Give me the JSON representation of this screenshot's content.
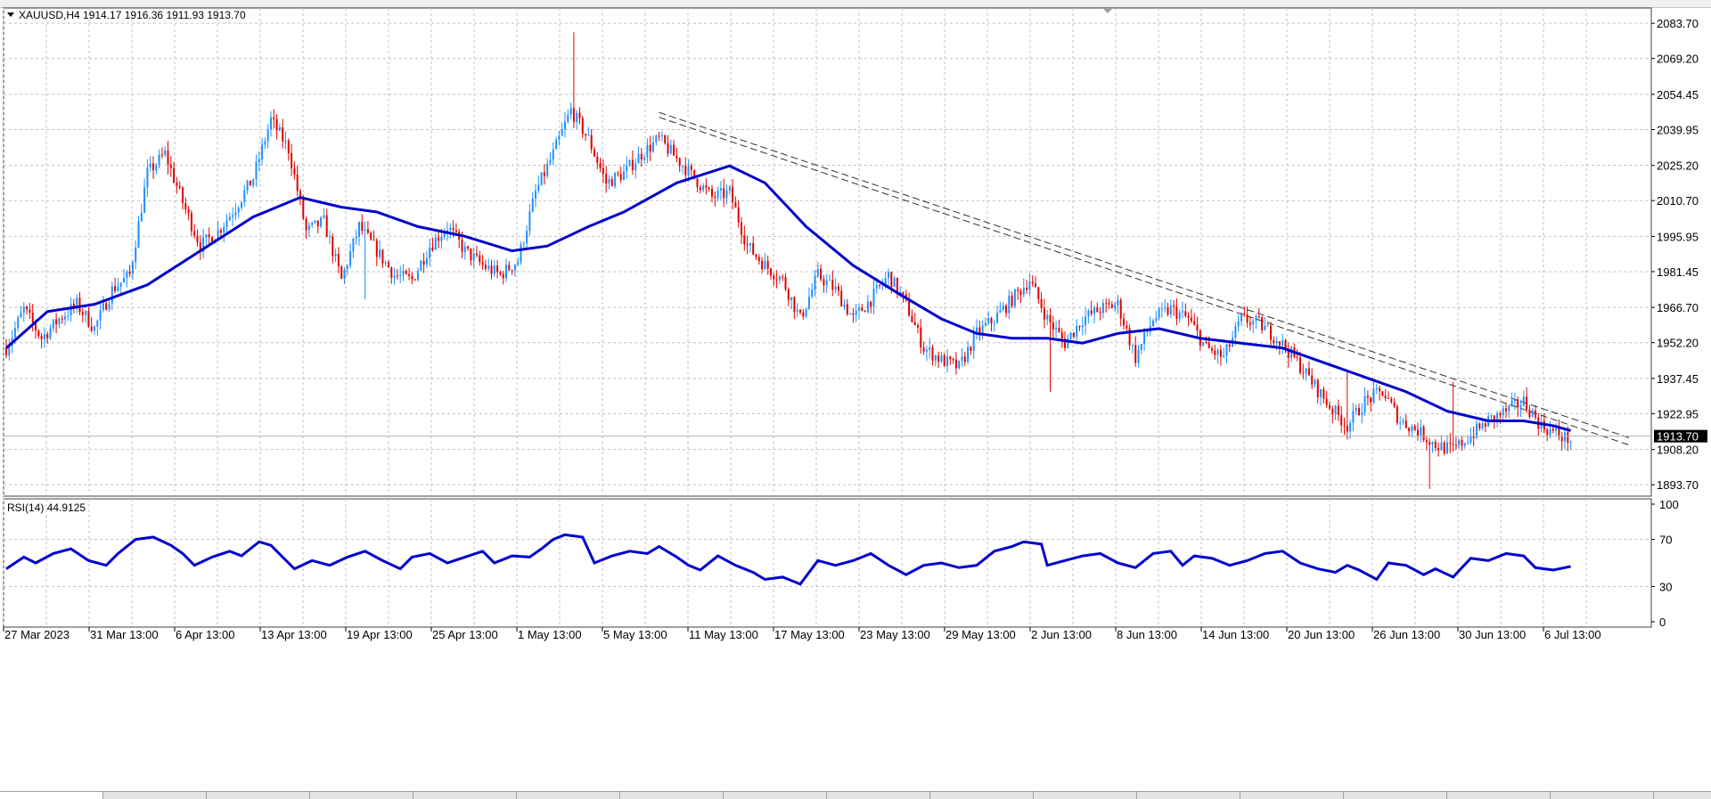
{
  "header": {
    "symbol_info": "XAUUSD,H4  1914.17 1916.36 1911.93 1913.70",
    "indicator_label": "RSI(14) 44.9125"
  },
  "price_axis": {
    "labels": [
      "2083.70",
      "2069.20",
      "2054.45",
      "2039.95",
      "2025.20",
      "2010.70",
      "1995.95",
      "1981.45",
      "1966.70",
      "1952.20",
      "1937.45",
      "1922.95",
      "1908.20",
      "1893.70"
    ],
    "current_price": "1913.70"
  },
  "rsi_axis": {
    "labels": [
      "100",
      "70",
      "30",
      "0"
    ]
  },
  "time_axis": {
    "labels": [
      "27 Mar 2023",
      "31 Mar 13:00",
      "6 Apr 13:00",
      "13 Apr 13:00",
      "19 Apr 13:00",
      "25 Apr 13:00",
      "1 May 13:00",
      "5 May 13:00",
      "11 May 13:00",
      "17 May 13:00",
      "23 May 13:00",
      "29 May 13:00",
      "2 Jun 13:00",
      "8 Jun 13:00",
      "14 Jun 13:00",
      "20 Jun 13:00",
      "26 Jun 13:00",
      "30 Jun 13:00",
      "6 Jul 13:00"
    ]
  },
  "colors": {
    "bull_candle": "#1e90ff",
    "bear_candle": "#e00000",
    "moving_average": "#0000cd",
    "rsi_line": "#0000cd",
    "grid": "#c0c0c0",
    "trendline": "#303030",
    "price_tag_bg": "#000000"
  },
  "chart_data": [
    {
      "type": "candlestick",
      "symbol": "XAUUSD",
      "timeframe": "H4",
      "ylim": [
        1889,
        2090
      ],
      "grid": true,
      "x": [
        "27 Mar 2023",
        "31 Mar 13:00",
        "6 Apr 13:00",
        "13 Apr 13:00",
        "19 Apr 13:00",
        "25 Apr 13:00",
        "1 May 13:00",
        "5 May 13:00",
        "11 May 13:00",
        "17 May 13:00",
        "23 May 13:00",
        "29 May 13:00",
        "2 Jun 13:00",
        "8 Jun 13:00",
        "14 Jun 13:00",
        "20 Jun 13:00",
        "26 Jun 13:00",
        "30 Jun 13:00",
        "6 Jul 13:00"
      ],
      "close_path": [
        [
          0,
          1950
        ],
        [
          6,
          1966
        ],
        [
          12,
          1954
        ],
        [
          18,
          1962
        ],
        [
          24,
          1968
        ],
        [
          30,
          1958
        ],
        [
          36,
          1974
        ],
        [
          42,
          1980
        ],
        [
          48,
          2022
        ],
        [
          54,
          2030
        ],
        [
          60,
          2010
        ],
        [
          66,
          1992
        ],
        [
          72,
          1998
        ],
        [
          78,
          2008
        ],
        [
          84,
          2020
        ],
        [
          90,
          2044
        ],
        [
          96,
          2032
        ],
        [
          102,
          1998
        ],
        [
          108,
          2002
        ],
        [
          114,
          1978
        ],
        [
          120,
          2000
        ],
        [
          126,
          1990
        ],
        [
          132,
          1980
        ],
        [
          138,
          1978
        ],
        [
          144,
          1992
        ],
        [
          150,
          2000
        ],
        [
          156,
          1990
        ],
        [
          162,
          1984
        ],
        [
          168,
          1980
        ],
        [
          174,
          1986
        ],
        [
          180,
          2014
        ],
        [
          186,
          2030
        ],
        [
          192,
          2048
        ],
        [
          198,
          2036
        ],
        [
          204,
          2018
        ],
        [
          210,
          2022
        ],
        [
          216,
          2030
        ],
        [
          222,
          2036
        ],
        [
          228,
          2028
        ],
        [
          234,
          2020
        ],
        [
          240,
          2012
        ],
        [
          246,
          2014
        ],
        [
          252,
          1992
        ],
        [
          258,
          1984
        ],
        [
          264,
          1978
        ],
        [
          270,
          1962
        ],
        [
          276,
          1980
        ],
        [
          282,
          1974
        ],
        [
          288,
          1962
        ],
        [
          294,
          1970
        ],
        [
          300,
          1980
        ],
        [
          306,
          1968
        ],
        [
          312,
          1950
        ],
        [
          318,
          1945
        ],
        [
          324,
          1942
        ],
        [
          330,
          1956
        ],
        [
          336,
          1962
        ],
        [
          342,
          1970
        ],
        [
          348,
          1978
        ],
        [
          354,
          1962
        ],
        [
          360,
          1952
        ],
        [
          366,
          1962
        ],
        [
          372,
          1966
        ],
        [
          378,
          1968
        ],
        [
          384,
          1946
        ],
        [
          390,
          1962
        ],
        [
          396,
          1966
        ],
        [
          402,
          1962
        ],
        [
          408,
          1950
        ],
        [
          414,
          1946
        ],
        [
          420,
          1962
        ],
        [
          426,
          1960
        ],
        [
          432,
          1954
        ],
        [
          438,
          1946
        ],
        [
          444,
          1936
        ],
        [
          450,
          1926
        ],
        [
          456,
          1918
        ],
        [
          462,
          1928
        ],
        [
          468,
          1932
        ],
        [
          474,
          1920
        ],
        [
          480,
          1916
        ],
        [
          486,
          1910
        ],
        [
          492,
          1908
        ],
        [
          498,
          1914
        ],
        [
          504,
          1920
        ],
        [
          510,
          1924
        ],
        [
          516,
          1928
        ],
        [
          522,
          1918
        ],
        [
          528,
          1914
        ],
        [
          532,
          1912
        ]
      ],
      "high_extremes": [
        {
          "bar": 193,
          "value": 2080
        },
        {
          "bar": 492,
          "value": 1936
        },
        {
          "bar": 456,
          "value": 1940
        }
      ],
      "low_extremes": [
        {
          "bar": 484,
          "value": 1892
        },
        {
          "bar": 122,
          "value": 1970
        },
        {
          "bar": 355,
          "value": 1932
        }
      ],
      "moving_average": {
        "name": "MA",
        "points": [
          [
            0,
            1950
          ],
          [
            14,
            1965
          ],
          [
            30,
            1968
          ],
          [
            48,
            1976
          ],
          [
            66,
            1990
          ],
          [
            84,
            2004
          ],
          [
            100,
            2012
          ],
          [
            114,
            2008
          ],
          [
            126,
            2006
          ],
          [
            140,
            2000
          ],
          [
            156,
            1996
          ],
          [
            172,
            1990
          ],
          [
            184,
            1992
          ],
          [
            198,
            2000
          ],
          [
            210,
            2006
          ],
          [
            228,
            2018
          ],
          [
            246,
            2025
          ],
          [
            258,
            2018
          ],
          [
            272,
            2000
          ],
          [
            288,
            1984
          ],
          [
            304,
            1972
          ],
          [
            318,
            1962
          ],
          [
            330,
            1956
          ],
          [
            342,
            1954
          ],
          [
            354,
            1954
          ],
          [
            366,
            1952
          ],
          [
            378,
            1956
          ],
          [
            392,
            1958
          ],
          [
            406,
            1954
          ],
          [
            420,
            1952
          ],
          [
            434,
            1950
          ],
          [
            448,
            1944
          ],
          [
            462,
            1938
          ],
          [
            476,
            1932
          ],
          [
            490,
            1924
          ],
          [
            504,
            1920
          ],
          [
            516,
            1920
          ],
          [
            526,
            1918
          ],
          [
            532,
            1916
          ]
        ]
      },
      "trendlines": [
        {
          "style": "dashed",
          "from": {
            "bar": 222,
            "value": 2047
          },
          "to": {
            "bar": 552,
            "value": 1913
          }
        },
        {
          "style": "dashed",
          "from": {
            "bar": 222,
            "value": 2045
          },
          "to": {
            "bar": 552,
            "value": 1910
          }
        }
      ],
      "current_price": 1913.7
    },
    {
      "type": "line",
      "name": "RSI(14)",
      "ylim": [
        0,
        100
      ],
      "levels": [
        70,
        30
      ],
      "points": [
        [
          0,
          45
        ],
        [
          6,
          55
        ],
        [
          10,
          50
        ],
        [
          16,
          58
        ],
        [
          22,
          62
        ],
        [
          28,
          52
        ],
        [
          34,
          48
        ],
        [
          38,
          58
        ],
        [
          44,
          70
        ],
        [
          50,
          72
        ],
        [
          56,
          65
        ],
        [
          60,
          58
        ],
        [
          64,
          48
        ],
        [
          70,
          55
        ],
        [
          76,
          60
        ],
        [
          80,
          56
        ],
        [
          86,
          68
        ],
        [
          90,
          65
        ],
        [
          94,
          55
        ],
        [
          98,
          45
        ],
        [
          104,
          52
        ],
        [
          110,
          48
        ],
        [
          116,
          55
        ],
        [
          122,
          60
        ],
        [
          128,
          52
        ],
        [
          134,
          45
        ],
        [
          138,
          55
        ],
        [
          144,
          58
        ],
        [
          150,
          50
        ],
        [
          156,
          55
        ],
        [
          162,
          60
        ],
        [
          166,
          50
        ],
        [
          172,
          56
        ],
        [
          178,
          55
        ],
        [
          182,
          62
        ],
        [
          186,
          70
        ],
        [
          190,
          74
        ],
        [
          196,
          72
        ],
        [
          200,
          50
        ],
        [
          206,
          56
        ],
        [
          212,
          60
        ],
        [
          218,
          58
        ],
        [
          222,
          64
        ],
        [
          228,
          55
        ],
        [
          232,
          48
        ],
        [
          236,
          44
        ],
        [
          242,
          56
        ],
        [
          248,
          48
        ],
        [
          254,
          42
        ],
        [
          258,
          36
        ],
        [
          264,
          38
        ],
        [
          270,
          32
        ],
        [
          276,
          52
        ],
        [
          282,
          48
        ],
        [
          288,
          52
        ],
        [
          294,
          58
        ],
        [
          300,
          48
        ],
        [
          306,
          40
        ],
        [
          312,
          48
        ],
        [
          318,
          50
        ],
        [
          324,
          46
        ],
        [
          330,
          48
        ],
        [
          336,
          60
        ],
        [
          342,
          64
        ],
        [
          346,
          68
        ],
        [
          352,
          66
        ],
        [
          354,
          48
        ],
        [
          360,
          52
        ],
        [
          366,
          56
        ],
        [
          372,
          58
        ],
        [
          378,
          50
        ],
        [
          384,
          46
        ],
        [
          390,
          58
        ],
        [
          396,
          60
        ],
        [
          400,
          48
        ],
        [
          404,
          56
        ],
        [
          410,
          54
        ],
        [
          416,
          48
        ],
        [
          422,
          52
        ],
        [
          428,
          58
        ],
        [
          434,
          60
        ],
        [
          440,
          50
        ],
        [
          446,
          45
        ],
        [
          452,
          42
        ],
        [
          456,
          48
        ],
        [
          460,
          44
        ],
        [
          466,
          36
        ],
        [
          470,
          50
        ],
        [
          476,
          48
        ],
        [
          482,
          40
        ],
        [
          486,
          45
        ],
        [
          492,
          38
        ],
        [
          498,
          54
        ],
        [
          504,
          52
        ],
        [
          510,
          58
        ],
        [
          516,
          56
        ],
        [
          520,
          46
        ],
        [
          526,
          44
        ],
        [
          532,
          47
        ]
      ],
      "last_value": 44.9125
    }
  ]
}
